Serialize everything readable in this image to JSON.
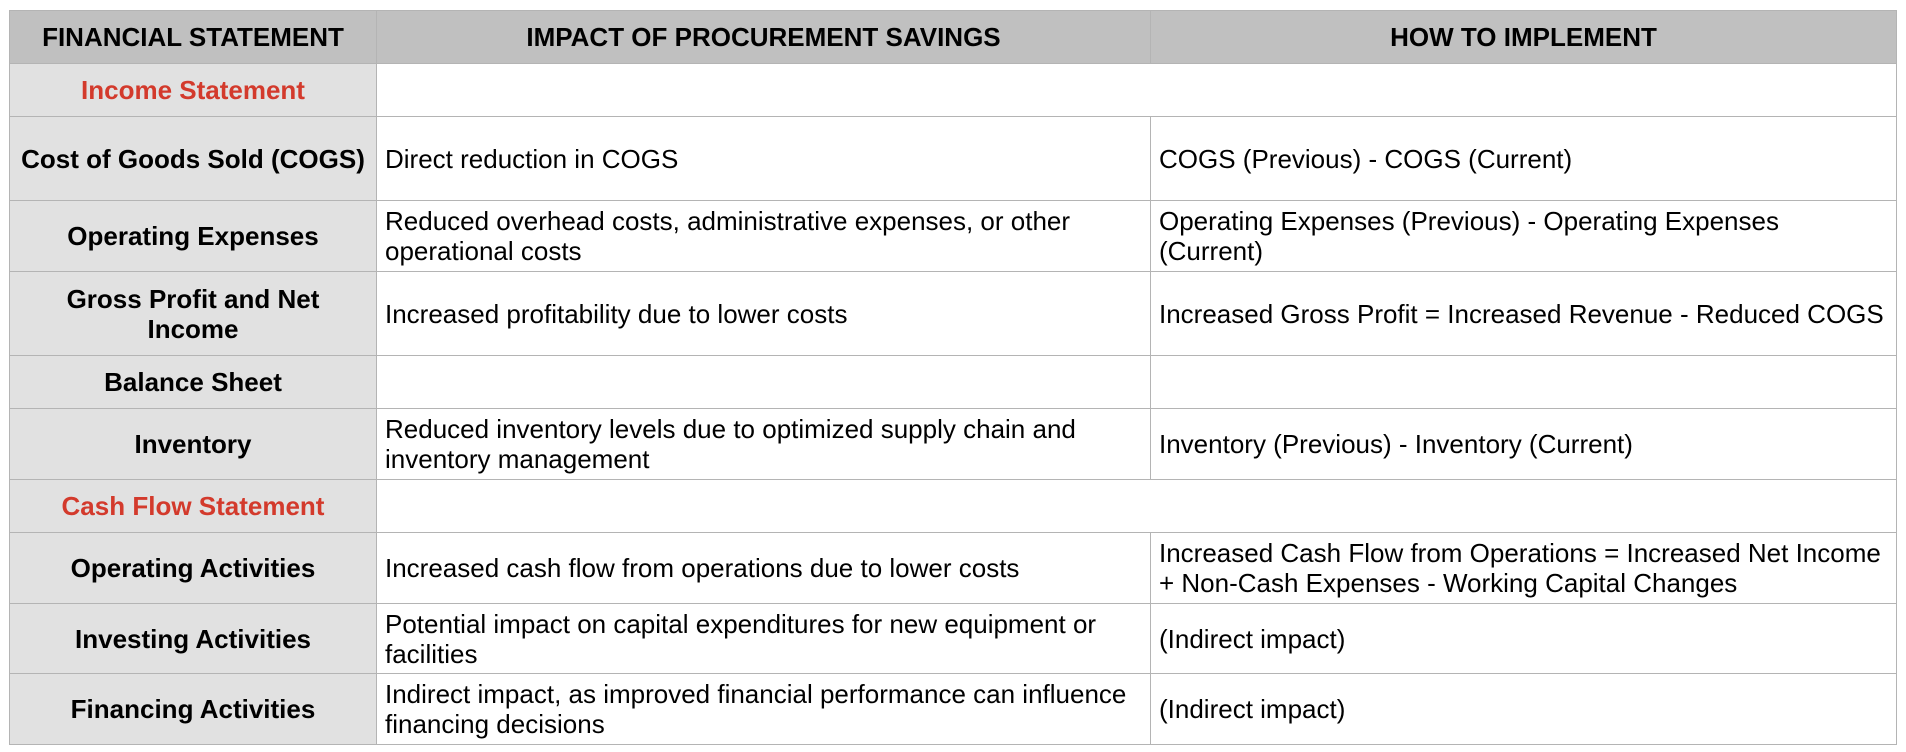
{
  "table": {
    "headers": [
      "FINANCIAL STATEMENT",
      "IMPACT OF PROCUREMENT SAVINGS",
      "HOW TO IMPLEMENT"
    ],
    "accent_color": "#d33a2c",
    "rows": [
      {
        "label": "Income Statement",
        "section": true,
        "impact": "",
        "implement": ""
      },
      {
        "label": "Cost of Goods Sold (COGS)",
        "impact": "Direct reduction in COGS",
        "implement": "COGS (Previous) - COGS (Current)"
      },
      {
        "label": "Operating Expenses",
        "impact": "Reduced overhead costs, administrative expenses, or other operational costs",
        "implement": "Operating Expenses (Previous) - Operating Expenses (Current)"
      },
      {
        "label": "Gross Profit and Net Income",
        "impact": "Increased profitability due to lower costs",
        "implement": "Increased Gross Profit = Increased Revenue - Reduced COGS"
      },
      {
        "label": "Balance Sheet",
        "impact": "",
        "implement": ""
      },
      {
        "label": "Inventory",
        "impact": "Reduced inventory levels due to optimized supply chain and inventory management",
        "implement": "Inventory (Previous) - Inventory (Current)"
      },
      {
        "label": "Cash Flow Statement",
        "section": true,
        "impact": "",
        "implement": ""
      },
      {
        "label": "Operating Activities",
        "impact": "Increased cash flow from operations due to lower costs",
        "implement": "Increased Cash Flow from Operations = Increased Net Income + Non-Cash Expenses - Working Capital Changes"
      },
      {
        "label": "Investing Activities",
        "impact": "Potential impact on capital expenditures for new equipment or facilities",
        "implement": "(Indirect impact)"
      },
      {
        "label": "Financing Activities",
        "impact": "Indirect impact, as improved financial performance can influence financing decisions",
        "implement": "(Indirect impact)"
      }
    ]
  }
}
